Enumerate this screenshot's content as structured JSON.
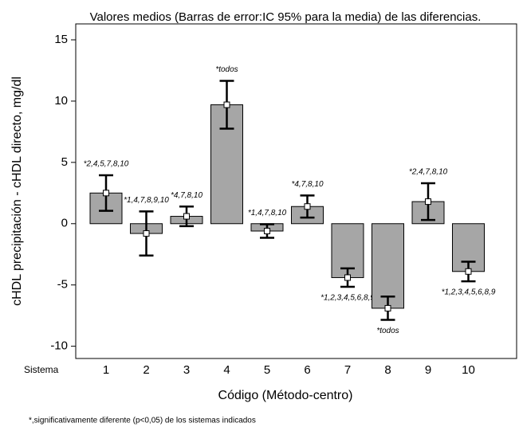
{
  "chart_data": {
    "type": "bar",
    "title": "Valores medios (Barras de error:IC 95% para la media) de las diferencias.",
    "x_label": "Código (Método-centro)",
    "y_label": "cHDL precipitación - cHDL directo, mg/dl",
    "x_prefix": "Sistema",
    "footnote": "*,significativamente diferente (p<0,05) de los sistemas indicados",
    "categories": [
      "1",
      "2",
      "3",
      "4",
      "5",
      "6",
      "7",
      "8",
      "9",
      "10"
    ],
    "values": [
      2.5,
      -0.8,
      0.6,
      9.7,
      -0.6,
      1.4,
      -4.4,
      -6.9,
      1.8,
      -3.9
    ],
    "errors": [
      1.45,
      1.8,
      0.8,
      1.95,
      0.55,
      0.9,
      0.75,
      0.95,
      1.5,
      0.8
    ],
    "annotations": [
      "*2,4,5,7,8,10",
      "*1,4,7,8,9,10",
      "*4,7,8,10",
      "*todos",
      "*1,4,7,8,10",
      "*4,7,8,10",
      "*1,2,3,4,5,6,8,9",
      "*todos",
      "*2,4,7,8,10",
      "*1,2,3,4,5,6,8,9"
    ],
    "color": "#a6a6a6",
    "ylim": [
      -11,
      16.3
    ],
    "yticks": [
      -10,
      -5,
      0,
      5,
      10,
      15
    ]
  }
}
